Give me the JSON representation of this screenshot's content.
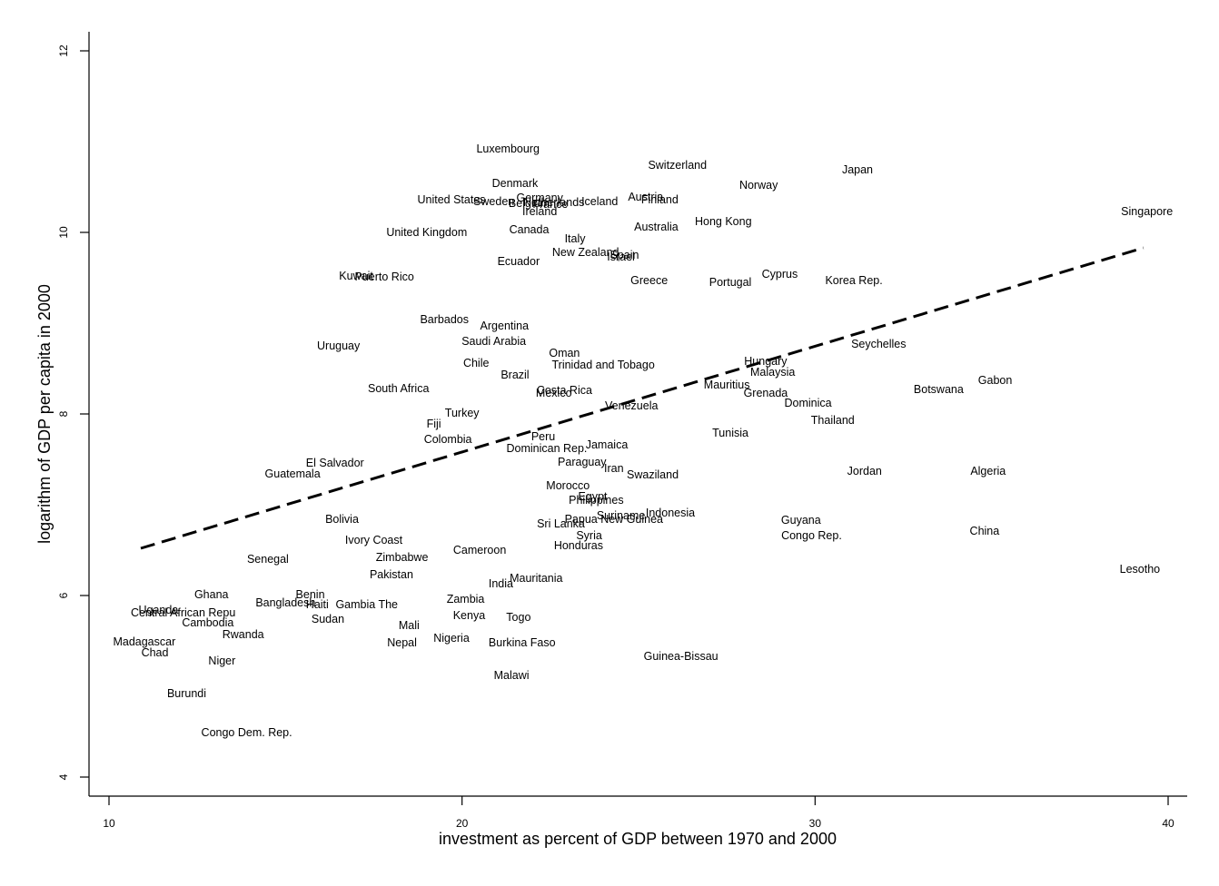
{
  "chart_data": {
    "type": "scatter",
    "title": "",
    "xlabel": "investment as percent of GDP between 1970 and 2000",
    "ylabel": "logarithm of GDP per capita in 2000",
    "xlim": [
      9.5,
      40.5
    ],
    "ylim": [
      3.8,
      12.2
    ],
    "xticks": [
      10,
      20,
      30,
      40
    ],
    "yticks": [
      4,
      6,
      8,
      10,
      12
    ],
    "marker": "country-name-text",
    "grid": false,
    "legend": "none",
    "fit_line": {
      "style": "dashed",
      "color": "#000000",
      "x": [
        10.9,
        39.3
      ],
      "y": [
        6.52,
        9.83
      ]
    },
    "points": [
      {
        "label": "Luxembourg",
        "x": 21.3,
        "y": 10.92
      },
      {
        "label": "Switzerland",
        "x": 26.1,
        "y": 10.74
      },
      {
        "label": "Japan",
        "x": 31.2,
        "y": 10.69
      },
      {
        "label": "Denmark",
        "x": 21.5,
        "y": 10.54
      },
      {
        "label": "Norway",
        "x": 28.4,
        "y": 10.52
      },
      {
        "label": "United States",
        "x": 19.7,
        "y": 10.36
      },
      {
        "label": "Sweden",
        "x": 20.9,
        "y": 10.34
      },
      {
        "label": "Germany",
        "x": 22.2,
        "y": 10.38
      },
      {
        "label": "Netherlands",
        "x": 22.6,
        "y": 10.33
      },
      {
        "label": "Belgium",
        "x": 21.9,
        "y": 10.32
      },
      {
        "label": "France",
        "x": 22.5,
        "y": 10.31
      },
      {
        "label": "Iceland",
        "x": 23.9,
        "y": 10.34
      },
      {
        "label": "Austria",
        "x": 25.2,
        "y": 10.39
      },
      {
        "label": "Finland",
        "x": 25.6,
        "y": 10.36
      },
      {
        "label": "Ireland",
        "x": 22.2,
        "y": 10.23
      },
      {
        "label": "Singapore",
        "x": 39.4,
        "y": 10.23
      },
      {
        "label": "United Kingdom",
        "x": 19.0,
        "y": 10.0
      },
      {
        "label": "Canada",
        "x": 21.9,
        "y": 10.03
      },
      {
        "label": "Australia",
        "x": 25.5,
        "y": 10.06
      },
      {
        "label": "Hong Kong",
        "x": 27.4,
        "y": 10.12
      },
      {
        "label": "Italy",
        "x": 23.2,
        "y": 9.93
      },
      {
        "label": "New Zealand",
        "x": 23.5,
        "y": 9.78
      },
      {
        "label": "Spain",
        "x": 24.6,
        "y": 9.75
      },
      {
        "label": "Israel",
        "x": 24.5,
        "y": 9.73
      },
      {
        "label": "Ecuador",
        "x": 21.6,
        "y": 9.68
      },
      {
        "label": "Kuwait",
        "x": 17.0,
        "y": 9.52
      },
      {
        "label": "Puerto Rico",
        "x": 17.8,
        "y": 9.51
      },
      {
        "label": "Greece",
        "x": 25.3,
        "y": 9.47
      },
      {
        "label": "Portugal",
        "x": 27.6,
        "y": 9.45
      },
      {
        "label": "Cyprus",
        "x": 29.0,
        "y": 9.54
      },
      {
        "label": "Korea Rep.",
        "x": 31.1,
        "y": 9.47
      },
      {
        "label": "Barbados",
        "x": 19.5,
        "y": 9.04
      },
      {
        "label": "Argentina",
        "x": 21.2,
        "y": 8.97
      },
      {
        "label": "Saudi Arabia",
        "x": 20.9,
        "y": 8.8
      },
      {
        "label": "Uruguay",
        "x": 16.5,
        "y": 8.75
      },
      {
        "label": "Seychelles",
        "x": 31.8,
        "y": 8.77
      },
      {
        "label": "Oman",
        "x": 22.9,
        "y": 8.67
      },
      {
        "label": "Chile",
        "x": 20.4,
        "y": 8.56
      },
      {
        "label": "Trinidad and Tobago",
        "x": 24.0,
        "y": 8.54
      },
      {
        "label": "Hungary",
        "x": 28.6,
        "y": 8.58
      },
      {
        "label": "Malaysia",
        "x": 28.8,
        "y": 8.46
      },
      {
        "label": "Brazil",
        "x": 21.5,
        "y": 8.43
      },
      {
        "label": "Mauritius",
        "x": 27.5,
        "y": 8.32
      },
      {
        "label": "Gabon",
        "x": 35.1,
        "y": 8.37
      },
      {
        "label": "South Africa",
        "x": 18.2,
        "y": 8.28
      },
      {
        "label": "Costa Rica",
        "x": 22.9,
        "y": 8.26
      },
      {
        "label": "Mexico",
        "x": 22.6,
        "y": 8.23
      },
      {
        "label": "Botswana",
        "x": 33.5,
        "y": 8.27
      },
      {
        "label": "Grenada",
        "x": 28.6,
        "y": 8.23
      },
      {
        "label": "Dominica",
        "x": 29.8,
        "y": 8.12
      },
      {
        "label": "Venezuela",
        "x": 24.8,
        "y": 8.09
      },
      {
        "label": "Turkey",
        "x": 20.0,
        "y": 8.01
      },
      {
        "label": "Thailand",
        "x": 30.5,
        "y": 7.93
      },
      {
        "label": "Fiji",
        "x": 19.2,
        "y": 7.89
      },
      {
        "label": "Tunisia",
        "x": 27.6,
        "y": 7.79
      },
      {
        "label": "Peru",
        "x": 22.3,
        "y": 7.75
      },
      {
        "label": "Colombia",
        "x": 19.6,
        "y": 7.72
      },
      {
        "label": "Jamaica",
        "x": 24.1,
        "y": 7.66
      },
      {
        "label": "Dominican Rep.",
        "x": 22.4,
        "y": 7.62
      },
      {
        "label": "El Salvador",
        "x": 16.4,
        "y": 7.46
      },
      {
        "label": "Paraguay",
        "x": 23.4,
        "y": 7.47
      },
      {
        "label": "Iran",
        "x": 24.3,
        "y": 7.4
      },
      {
        "label": "Guatemala",
        "x": 15.2,
        "y": 7.34
      },
      {
        "label": "Swaziland",
        "x": 25.4,
        "y": 7.33
      },
      {
        "label": "Jordan",
        "x": 31.4,
        "y": 7.37
      },
      {
        "label": "Algeria",
        "x": 34.9,
        "y": 7.37
      },
      {
        "label": "Morocco",
        "x": 23.0,
        "y": 7.21
      },
      {
        "label": "Egypt",
        "x": 23.7,
        "y": 7.09
      },
      {
        "label": "Philippines",
        "x": 23.8,
        "y": 7.05
      },
      {
        "label": "Suriname",
        "x": 24.5,
        "y": 6.88
      },
      {
        "label": "Indonesia",
        "x": 25.9,
        "y": 6.91
      },
      {
        "label": "Papua New Guinea",
        "x": 24.3,
        "y": 6.84
      },
      {
        "label": "Sri Lanka",
        "x": 22.8,
        "y": 6.79
      },
      {
        "label": "Bolivia",
        "x": 16.6,
        "y": 6.84
      },
      {
        "label": "Guyana",
        "x": 29.6,
        "y": 6.83
      },
      {
        "label": "China",
        "x": 34.8,
        "y": 6.71
      },
      {
        "label": "Syria",
        "x": 23.6,
        "y": 6.66
      },
      {
        "label": "Congo Rep.",
        "x": 29.9,
        "y": 6.66
      },
      {
        "label": "Ivory Coast",
        "x": 17.5,
        "y": 6.61
      },
      {
        "label": "Honduras",
        "x": 23.3,
        "y": 6.55
      },
      {
        "label": "Cameroon",
        "x": 20.5,
        "y": 6.5
      },
      {
        "label": "Zimbabwe",
        "x": 18.3,
        "y": 6.42
      },
      {
        "label": "Senegal",
        "x": 14.5,
        "y": 6.4
      },
      {
        "label": "Lesotho",
        "x": 39.2,
        "y": 6.29
      },
      {
        "label": "Pakistan",
        "x": 18.0,
        "y": 6.23
      },
      {
        "label": "Mauritania",
        "x": 22.1,
        "y": 6.19
      },
      {
        "label": "India",
        "x": 21.1,
        "y": 6.13
      },
      {
        "label": "Ghana",
        "x": 12.9,
        "y": 6.01
      },
      {
        "label": "Benin",
        "x": 15.7,
        "y": 6.01
      },
      {
        "label": "Zambia",
        "x": 20.1,
        "y": 5.96
      },
      {
        "label": "Bangladesh",
        "x": 15.0,
        "y": 5.92
      },
      {
        "label": "Haiti",
        "x": 15.9,
        "y": 5.9
      },
      {
        "label": "Gambia The",
        "x": 17.3,
        "y": 5.9
      },
      {
        "label": "Uganda",
        "x": 11.4,
        "y": 5.84
      },
      {
        "label": "Central African Repu",
        "x": 12.1,
        "y": 5.81
      },
      {
        "label": "Kenya",
        "x": 20.2,
        "y": 5.78
      },
      {
        "label": "Togo",
        "x": 21.6,
        "y": 5.76
      },
      {
        "label": "Sudan",
        "x": 16.2,
        "y": 5.74
      },
      {
        "label": "Cambodia",
        "x": 12.8,
        "y": 5.7
      },
      {
        "label": "Mali",
        "x": 18.5,
        "y": 5.67
      },
      {
        "label": "Rwanda",
        "x": 13.8,
        "y": 5.57
      },
      {
        "label": "Nigeria",
        "x": 19.7,
        "y": 5.53
      },
      {
        "label": "Madagascar",
        "x": 11.0,
        "y": 5.49
      },
      {
        "label": "Nepal",
        "x": 18.3,
        "y": 5.48
      },
      {
        "label": "Burkina Faso",
        "x": 21.7,
        "y": 5.48
      },
      {
        "label": "Chad",
        "x": 11.3,
        "y": 5.37
      },
      {
        "label": "Guinea-Bissau",
        "x": 26.2,
        "y": 5.33
      },
      {
        "label": "Niger",
        "x": 13.2,
        "y": 5.28
      },
      {
        "label": "Malawi",
        "x": 21.4,
        "y": 5.12
      },
      {
        "label": "Burundi",
        "x": 12.2,
        "y": 4.92
      },
      {
        "label": "Congo Dem. Rep.",
        "x": 13.9,
        "y": 4.49
      }
    ]
  }
}
